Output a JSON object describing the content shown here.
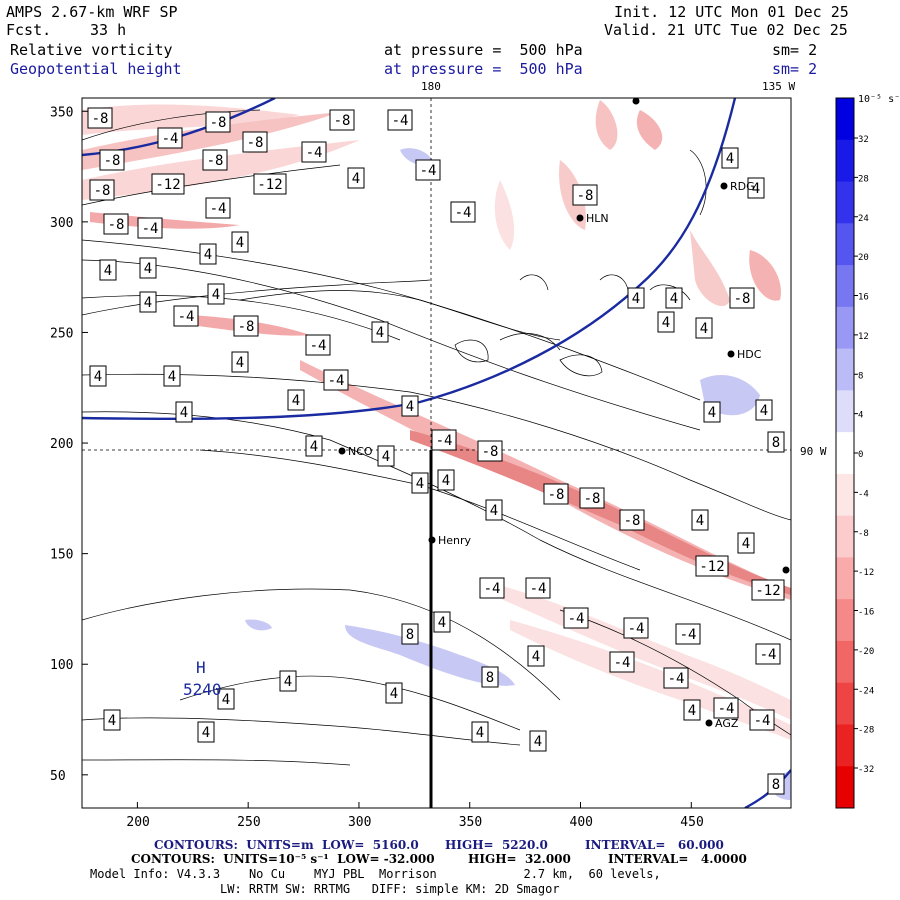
{
  "header": {
    "model": "AMPS 2.67-km WRF SP",
    "forecast_label": "Fcst.",
    "forecast_value": "33 h",
    "init": "Init. 12 UTC Mon 01 Dec 25",
    "valid": "Valid. 21 UTC Tue 02 Dec 25",
    "field1": "Relative vorticity",
    "field2": "Geopotential height",
    "level1": "at pressure =  500 hPa",
    "level2": "at pressure =  500 hPa",
    "sm1": "sm= 2",
    "sm2": "sm= 2"
  },
  "map": {
    "lon_labels": [
      "180",
      "135 W",
      "90 W"
    ],
    "x_ticks": [
      "200",
      "250",
      "300",
      "350",
      "400",
      "450"
    ],
    "y_ticks": [
      "350",
      "300",
      "250",
      "200",
      "150",
      "100",
      "50"
    ],
    "stations": [
      {
        "name": "NCO"
      },
      {
        "name": "Henry"
      },
      {
        "name": "RDG"
      },
      {
        "name": "HDC"
      },
      {
        "name": "HLN"
      },
      {
        "name": "AGZ"
      }
    ],
    "high_label": "H",
    "high_value": "5240"
  },
  "colorbar": {
    "unit": "10⁻⁵ s⁻¹",
    "labels": [
      "32",
      "28",
      "24",
      "20",
      "16",
      "12",
      "8",
      "4",
      "0",
      "-4",
      "-8",
      "-12",
      "-16",
      "-20",
      "-24",
      "-28",
      "-32"
    ],
    "colors": [
      "#0000e0",
      "#1a1ae8",
      "#3333ee",
      "#5555f0",
      "#7777f2",
      "#9999f5",
      "#bbbbf8",
      "#ddddfb",
      "#ffffff",
      "#fde6e6",
      "#fccccc",
      "#f9aaaa",
      "#f58888",
      "#f26666",
      "#ee4444",
      "#ea2222",
      "#e60000"
    ]
  },
  "footer": {
    "line1_a": "CONTOURS:  UNITS=m  LOW=  5160.0",
    "line1_b": "HIGH=  5220.0",
    "line1_c": "INTERVAL=   60.000",
    "line2_a": "CONTOURS:  UNITS=10⁻⁵ s⁻¹  LOW= -32.000",
    "line2_b": "HIGH=  32.000",
    "line2_c": "INTERVAL=   4.0000",
    "line3": "Model Info: V4.3.3    No Cu    MYJ PBL  Morrison            2.7 km,  60 levels,",
    "line4": "LW: RRTM SW: RRTMG   DIFF: simple KM: 2D Smagor"
  },
  "contour_labels": [
    "-8",
    "-4",
    "-12",
    "4",
    "8"
  ]
}
